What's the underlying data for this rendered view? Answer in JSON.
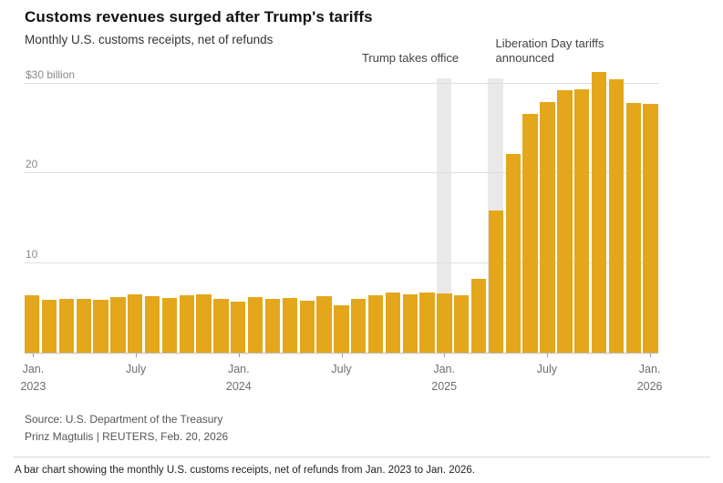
{
  "header": {
    "title": "Customs revenues surged after Trump's tariffs",
    "subtitle": "Monthly U.S. customs receipts, net of refunds"
  },
  "footer": {
    "source": "Source: U.S. Department of the Treasury",
    "credit": "Prinz Magtulis | REUTERS, Feb. 20, 2026",
    "alt_text": "A bar chart showing the monthly U.S. customs receipts, net of refunds from Jan. 2023 to Jan. 2026."
  },
  "colors": {
    "bar": "#e4a71b",
    "highlight_band": "#e9e9e9",
    "gridline": "#dedede",
    "baseline": "#bdbdbd",
    "axis_text": "#6e6e6e"
  },
  "chart_data": {
    "type": "bar",
    "title": "Customs revenues surged after Trump's tariffs",
    "subtitle": "Monthly U.S. customs receipts, net of refunds",
    "unit": "USD billions per month",
    "xlabel": "",
    "ylabel": "",
    "grid": "horizontal",
    "legend": "none",
    "ylim": [
      0,
      31.5
    ],
    "yticks": [
      {
        "value": 10,
        "label": "10"
      },
      {
        "value": 20,
        "label": "20"
      },
      {
        "value": 30,
        "label": "$30 billion"
      }
    ],
    "x": [
      "Jan. 2023",
      "Feb. 2023",
      "Mar. 2023",
      "Apr. 2023",
      "May 2023",
      "Jun. 2023",
      "Jul. 2023",
      "Aug. 2023",
      "Sep. 2023",
      "Oct. 2023",
      "Nov. 2023",
      "Dec. 2023",
      "Jan. 2024",
      "Feb. 2024",
      "Mar. 2024",
      "Apr. 2024",
      "May 2024",
      "Jun. 2024",
      "Jul. 2024",
      "Aug. 2024",
      "Sep. 2024",
      "Oct. 2024",
      "Nov. 2024",
      "Dec. 2024",
      "Jan. 2025",
      "Feb. 2025",
      "Mar. 2025",
      "Apr. 2025",
      "May 2025",
      "Jun. 2025",
      "Jul. 2025",
      "Aug. 2025",
      "Sep. 2025",
      "Oct. 2025",
      "Nov. 2025",
      "Dec. 2025",
      "Jan. 2026"
    ],
    "values": [
      6.4,
      5.9,
      6.0,
      6.0,
      5.9,
      6.2,
      6.5,
      6.3,
      6.1,
      6.4,
      6.5,
      6.0,
      5.7,
      6.2,
      6.0,
      6.1,
      5.8,
      6.3,
      5.3,
      6.0,
      6.4,
      6.7,
      6.5,
      6.7,
      6.6,
      6.4,
      8.2,
      15.9,
      22.2,
      26.6,
      27.9,
      29.3,
      29.4,
      31.3,
      30.5,
      27.8,
      27.7
    ],
    "xticks": [
      {
        "index": 0,
        "line1": "Jan.",
        "line2": "2023"
      },
      {
        "index": 6,
        "line1": "July",
        "line2": ""
      },
      {
        "index": 12,
        "line1": "Jan.",
        "line2": "2024"
      },
      {
        "index": 18,
        "line1": "July",
        "line2": ""
      },
      {
        "index": 24,
        "line1": "Jan.",
        "line2": "2025"
      },
      {
        "index": 30,
        "line1": "July",
        "line2": ""
      },
      {
        "index": 36,
        "line1": "Jan.",
        "line2": "2026"
      }
    ],
    "annotations": [
      {
        "label": "Trump takes office",
        "month": "Jan. 2025",
        "month_index": 24,
        "align": "right"
      },
      {
        "label": "Liberation Day tariffs\nannounced",
        "month": "Apr. 2025",
        "month_index": 27,
        "align": "left"
      }
    ]
  }
}
